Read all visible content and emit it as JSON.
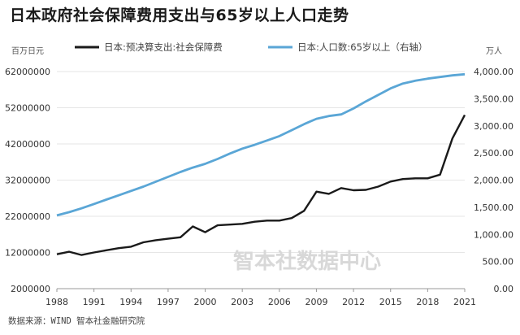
{
  "chart_data": {
    "type": "line",
    "title": "日本政府社会保障费用支出与65岁以上人口走势",
    "left_unit": "百万日元",
    "right_unit": "万人",
    "x": [
      1988,
      1989,
      1990,
      1991,
      1992,
      1993,
      1994,
      1995,
      1996,
      1997,
      1998,
      1999,
      2000,
      2001,
      2002,
      2003,
      2004,
      2005,
      2006,
      2007,
      2008,
      2009,
      2010,
      2011,
      2012,
      2013,
      2014,
      2015,
      2016,
      2017,
      2018,
      2019,
      2020,
      2021
    ],
    "x_ticks": [
      "1988",
      "1991",
      "1994",
      "1997",
      "2000",
      "2003",
      "2006",
      "2009",
      "2012",
      "2015",
      "2018",
      "2021"
    ],
    "y_left_ticks": [
      "2000000",
      "12000000",
      "22000000",
      "32000000",
      "42000000",
      "52000000",
      "62000000"
    ],
    "y_right_ticks": [
      "0.00",
      "500.00",
      "1,000.00",
      "1,500.00",
      "2,000.00",
      "2,500.00",
      "3,000.00",
      "3,500.00",
      "4,000.00"
    ],
    "ylim_left": [
      2000000,
      62000000
    ],
    "ylim_right": [
      0,
      4000
    ],
    "series": [
      {
        "name": "日本:预决算支出:社会保障费",
        "axis": "left",
        "color": "#1a1a1a",
        "values": [
          11500000,
          12200000,
          11300000,
          12000000,
          12600000,
          13200000,
          13600000,
          14800000,
          15400000,
          15800000,
          16200000,
          19200000,
          17600000,
          19500000,
          19700000,
          19900000,
          20500000,
          20800000,
          20800000,
          21500000,
          23500000,
          28800000,
          28200000,
          29800000,
          29200000,
          29300000,
          30200000,
          31600000,
          32300000,
          32500000,
          32500000,
          33500000,
          43500000,
          50000000
        ]
      },
      {
        "name": "日本:人口数:65岁以上（右轴）",
        "axis": "right",
        "color": "#5aa6d6",
        "values": [
          1350,
          1410,
          1480,
          1560,
          1640,
          1720,
          1800,
          1880,
          1970,
          2060,
          2150,
          2230,
          2300,
          2390,
          2490,
          2580,
          2650,
          2730,
          2810,
          2920,
          3030,
          3130,
          3180,
          3210,
          3320,
          3450,
          3570,
          3690,
          3780,
          3830,
          3870,
          3900,
          3930,
          3950
        ]
      }
    ]
  },
  "source": "数据来源：WIND 智本社金融研究院",
  "watermark": "智本社数据中心"
}
